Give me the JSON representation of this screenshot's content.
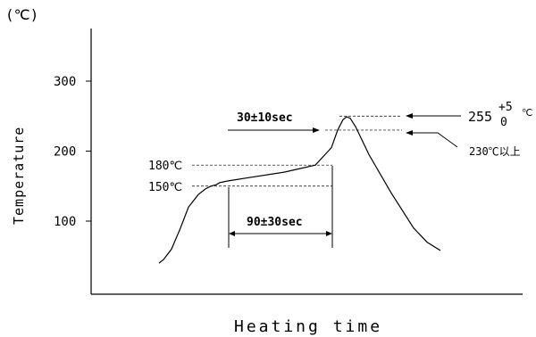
{
  "chart_data": {
    "type": "line",
    "unit_label": "(℃)",
    "ylabel": "Temperature",
    "xlabel": "Heating time",
    "ylim": [
      0,
      380
    ],
    "yticks": [
      100,
      200,
      300
    ],
    "series": [
      {
        "x": [
          0,
          5,
          14,
          24,
          33,
          44,
          52,
          58,
          64,
          68,
          72,
          75,
          80,
          100,
          140,
          175,
          193,
          200,
          206,
          210,
          214,
          220,
          235,
          260,
          285,
          300,
          315
        ],
        "values": [
          40,
          45,
          60,
          90,
          120,
          138,
          146,
          150,
          152,
          155,
          156,
          157,
          158,
          162,
          170,
          180,
          205,
          230,
          245,
          249,
          247,
          235,
          195,
          140,
          90,
          70,
          58
        ]
      }
    ],
    "reference_lines": [
      {
        "label": "150℃",
        "value": 150
      },
      {
        "label": "180℃",
        "value": 180
      },
      {
        "label": "230℃以上",
        "value": 230
      },
      {
        "label_base": "255",
        "label_sup": "+5",
        "label_sub": "0",
        "label_unit": "℃",
        "value": 250
      }
    ],
    "annotations": {
      "preheat_label": "90±30sec",
      "peak_label": "30±10sec"
    }
  }
}
